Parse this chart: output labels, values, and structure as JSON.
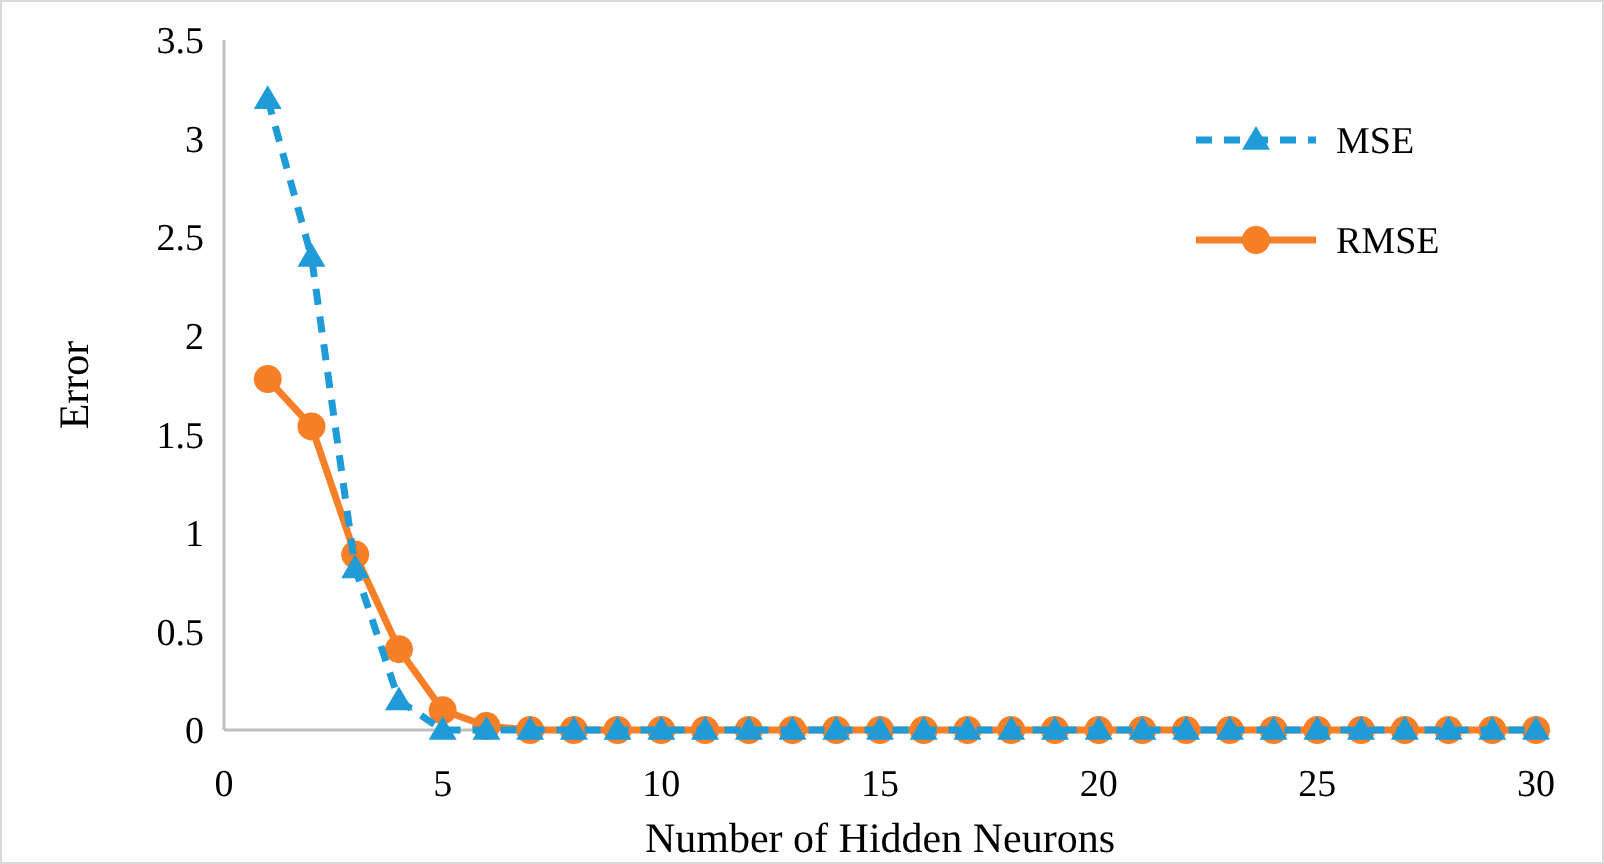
{
  "chart_data": {
    "type": "line",
    "xlabel": "Number of Hidden Neurons",
    "ylabel": "Error",
    "x": [
      1,
      2,
      3,
      4,
      5,
      6,
      7,
      8,
      9,
      10,
      11,
      12,
      13,
      14,
      15,
      16,
      17,
      18,
      19,
      20,
      21,
      22,
      23,
      24,
      25,
      26,
      27,
      28,
      29,
      30
    ],
    "xlim": [
      0,
      30
    ],
    "xticks": [
      0,
      5,
      10,
      15,
      20,
      25,
      30
    ],
    "ylim": [
      0,
      3.5
    ],
    "yticks": [
      0,
      0.5,
      1,
      1.5,
      2,
      2.5,
      3,
      3.5
    ],
    "grid": false,
    "legend": "top right",
    "series": [
      {
        "name": "MSE",
        "color": "#1f9bd7",
        "marker": "triangle",
        "line_style": "dashed",
        "values": [
          3.2,
          2.4,
          0.82,
          0.15,
          0,
          0,
          0,
          0,
          0,
          0,
          0,
          0,
          0,
          0,
          0,
          0,
          0,
          0,
          0,
          0,
          0,
          0,
          0,
          0,
          0,
          0,
          0,
          0,
          0,
          0
        ]
      },
      {
        "name": "RMSE",
        "color": "#f77f27",
        "marker": "circle",
        "line_style": "solid",
        "values": [
          1.78,
          1.54,
          0.89,
          0.41,
          0.1,
          0.02,
          0,
          0,
          0,
          0,
          0,
          0,
          0,
          0,
          0,
          0,
          0,
          0,
          0,
          0,
          0,
          0,
          0,
          0,
          0,
          0,
          0,
          0,
          0,
          0
        ]
      }
    ]
  }
}
